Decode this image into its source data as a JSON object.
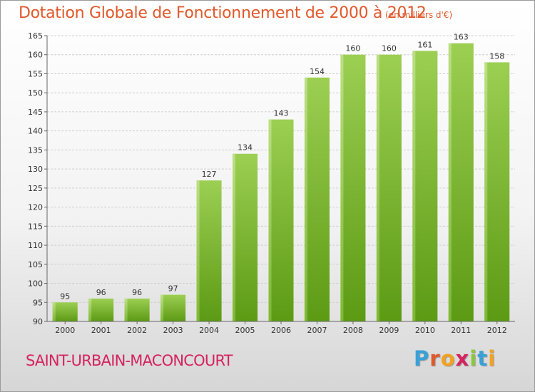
{
  "chart_data": {
    "type": "bar",
    "title": "Dotation Globale de Fonctionnement de 2000 à 2012",
    "unit_note": "(en milliers d'€)",
    "categories": [
      "2000",
      "2001",
      "2002",
      "2003",
      "2004",
      "2005",
      "2006",
      "2007",
      "2008",
      "2009",
      "2010",
      "2011",
      "2012"
    ],
    "values": [
      95,
      96,
      96,
      97,
      127,
      134,
      143,
      154,
      160,
      160,
      161,
      163,
      158
    ],
    "ylim": [
      90,
      165
    ],
    "yticks": [
      90,
      95,
      100,
      105,
      110,
      115,
      120,
      125,
      130,
      135,
      140,
      145,
      150,
      155,
      160,
      165
    ],
    "grid": true,
    "bar_color": "#8cc63f",
    "bar_color_dark": "#5c9a14"
  },
  "footer": {
    "commune": "SAINT-URBAIN-MACONCOURT",
    "logo_letters": [
      "P",
      "r",
      "o",
      "x",
      "i",
      "t",
      "i"
    ],
    "logo_colors": [
      "#3aa0d8",
      "#e0592b",
      "#f2a21f",
      "#d6235e",
      "#8cc63f",
      "#3aa0d8",
      "#f2a21f"
    ]
  },
  "colors": {
    "title": "#e0592b",
    "commune": "#d6235e"
  }
}
